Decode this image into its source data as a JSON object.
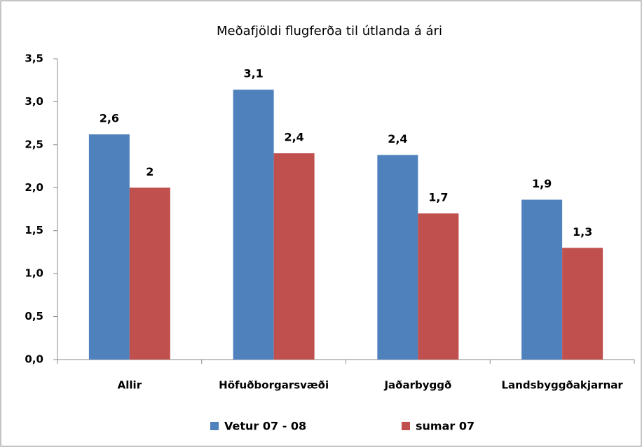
{
  "chart_data": {
    "type": "bar",
    "title": "Meðafjöldi flugferða til útlanda á ári",
    "categories": [
      "Allir",
      "Höfuðborgarsvæði",
      "Jaðarbyggð",
      "Landsbyggðakjarnar"
    ],
    "series": [
      {
        "name": "Vetur 07 - 08",
        "color": "#4f81bd",
        "values": [
          2.62,
          3.14,
          2.38,
          1.86
        ],
        "value_labels": [
          "2,6",
          "3,1",
          "2,4",
          "1,9"
        ]
      },
      {
        "name": "sumar 07",
        "color": "#c0504d",
        "values": [
          2.0,
          2.4,
          1.7,
          1.3
        ],
        "value_labels": [
          "2",
          "2,4",
          "1,7",
          "1,3"
        ]
      }
    ],
    "ylim": [
      0,
      3.5
    ],
    "yticks": [
      {
        "value": 0,
        "label": "0,0"
      },
      {
        "value": 0.5,
        "label": "0,5"
      },
      {
        "value": 1,
        "label": "1,0"
      },
      {
        "value": 1.5,
        "label": "1,5"
      },
      {
        "value": 2,
        "label": "2,0"
      },
      {
        "value": 2.5,
        "label": "2,5"
      },
      {
        "value": 3,
        "label": "3,0"
      },
      {
        "value": 3.5,
        "label": "3,5"
      }
    ],
    "grid": false,
    "legend": "bottom"
  }
}
